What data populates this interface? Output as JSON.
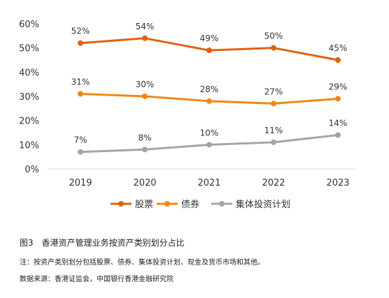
{
  "chart_data": {
    "type": "line",
    "categories": [
      "2019",
      "2020",
      "2021",
      "2022",
      "2023"
    ],
    "y_ticks": [
      "0%",
      "10%",
      "20%",
      "30%",
      "40%",
      "50%",
      "60%"
    ],
    "ylim": [
      0,
      60
    ],
    "grid": false,
    "legend_position": "bottom",
    "series": [
      {
        "name": "股票",
        "color": "#E0620E",
        "values": [
          52,
          54,
          49,
          50,
          45
        ],
        "labels": [
          "52%",
          "54%",
          "49%",
          "50%",
          "45%"
        ]
      },
      {
        "name": "债券",
        "color": "#EE8A14",
        "values": [
          31,
          30,
          28,
          27,
          29
        ],
        "labels": [
          "31%",
          "30%",
          "28%",
          "27%",
          "29%"
        ]
      },
      {
        "name": "集体投资计划",
        "color": "#A5A5A5",
        "values": [
          7,
          8,
          10,
          11,
          14
        ],
        "labels": [
          "7%",
          "8%",
          "10%",
          "11%",
          "14%"
        ]
      }
    ]
  },
  "figure": {
    "title": "图3　香港资产管理业务按资产类别划分占比",
    "note": "注：按资产类别划分包括股票、债券、集体投资计划、现金及货币市场和其他。",
    "source": "数据来源：香港证监会，中国银行香港金融研究院"
  }
}
